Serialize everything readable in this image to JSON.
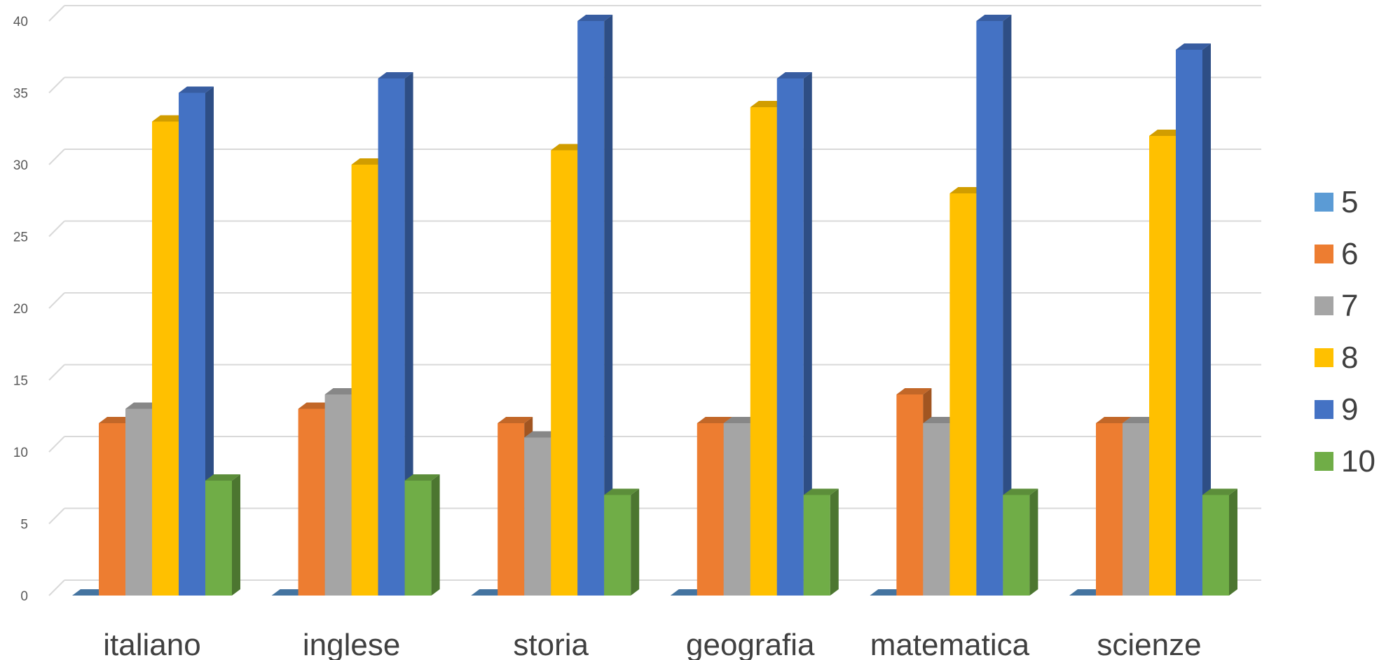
{
  "chart_data": {
    "type": "bar",
    "title": "",
    "xlabel": "",
    "ylabel": "",
    "ylim": [
      0,
      40
    ],
    "yticks": [
      0,
      5,
      10,
      15,
      20,
      25,
      30,
      35,
      40
    ],
    "grid": true,
    "legend_position": "right",
    "categories": [
      "italiano",
      "inglese",
      "storia",
      "geografia",
      "matematica",
      "scienze"
    ],
    "series": [
      {
        "name": "5",
        "color": "#5B9BD5",
        "values": [
          0,
          0,
          0,
          0,
          0,
          0
        ]
      },
      {
        "name": "6",
        "color": "#ED7D31",
        "values": [
          12,
          13,
          12,
          12,
          14,
          12
        ]
      },
      {
        "name": "7",
        "color": "#A5A5A5",
        "values": [
          13,
          14,
          11,
          12,
          12,
          12
        ]
      },
      {
        "name": "8",
        "color": "#FFC000",
        "values": [
          33,
          30,
          31,
          34,
          28,
          32
        ]
      },
      {
        "name": "9",
        "color": "#4472C4",
        "values": [
          35,
          36,
          40,
          36,
          40,
          38
        ]
      },
      {
        "name": "10",
        "color": "#70AD47",
        "values": [
          8,
          8,
          7,
          7,
          7,
          7
        ]
      }
    ]
  }
}
